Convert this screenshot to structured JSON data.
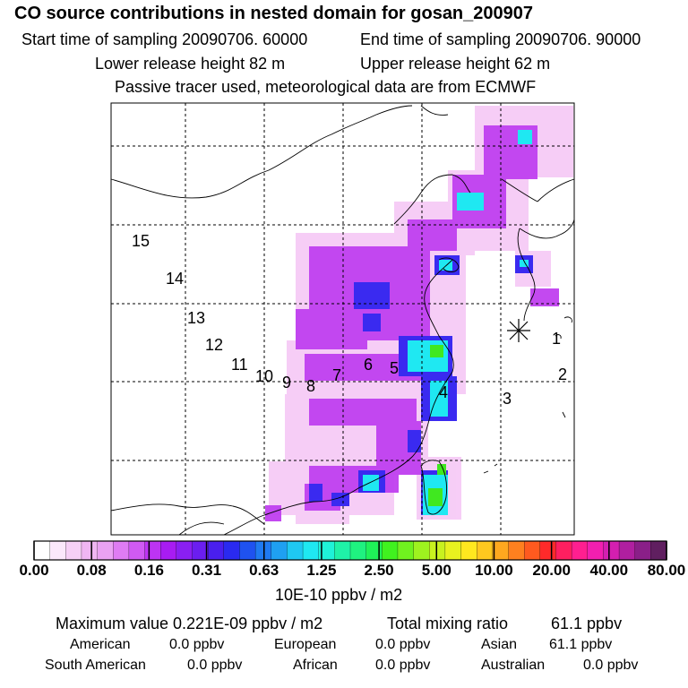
{
  "header": {
    "title": "CO  source contributions in nested domain for gosan_200907",
    "start_label": "Start time of sampling 20090706. 60000",
    "end_label": "End time of sampling 20090706. 90000",
    "lower_label": "Lower release height   82 m",
    "upper_label": "Upper release height   62 m",
    "note": "Passive tracer used, meteorological data are from ECMWF"
  },
  "map": {
    "receptor_marker": "asterisk",
    "region_numbers": [
      "1",
      "2",
      "3",
      "4",
      "5",
      "6",
      "7",
      "8",
      "9",
      "10",
      "11",
      "12",
      "13",
      "14",
      "15"
    ]
  },
  "colorbar": {
    "labels": [
      "0.00",
      "0.08",
      "0.16",
      "0.31",
      "0.63",
      "1.25",
      "2.50",
      "5.00",
      "10.00",
      "20.00",
      "40.00",
      "80.00"
    ],
    "unit": "10E-10 ppbv / m2",
    "colors": [
      "#ffffff",
      "#fbe8fb",
      "#f6d0f6",
      "#f0b6f3",
      "#eaa2f3",
      "#df7cf3",
      "#d05af3",
      "#bd34f3",
      "#a81cf2",
      "#8a1ff2",
      "#6b1ef0",
      "#4a1fee",
      "#2a2af0",
      "#1f52f0",
      "#1f7af2",
      "#1fa0f2",
      "#1fc8f2",
      "#1fe8f2",
      "#1ff2d8",
      "#1ff2a8",
      "#1ff280",
      "#1ff258",
      "#40f21f",
      "#70f21f",
      "#9ef21f",
      "#c8f21f",
      "#e8f21f",
      "#ffe81f",
      "#ffc81f",
      "#ffa81f",
      "#ff801f",
      "#ff5a1f",
      "#ff2a2a",
      "#ff1f60",
      "#ff1f90",
      "#f21fb0",
      "#d41fb0",
      "#b01fa0",
      "#8a1f88",
      "#601f60"
    ]
  },
  "footer": {
    "max_label": "Maximum value  0.221E-09 ppbv / m2",
    "total_label": "Total mixing ratio",
    "total_value": "61.1 ppbv",
    "american_label": "American",
    "american_value": "0.0 ppbv",
    "european_label": "European",
    "european_value": "0.0 ppbv",
    "asian_label": "Asian",
    "asian_value": "61.1 ppbv",
    "south_american_label": "South American",
    "south_american_value": "0.0 ppbv",
    "african_label": "African",
    "african_value": "0.0 ppbv",
    "australian_label": "Australian",
    "australian_value": "0.0 ppbv"
  }
}
